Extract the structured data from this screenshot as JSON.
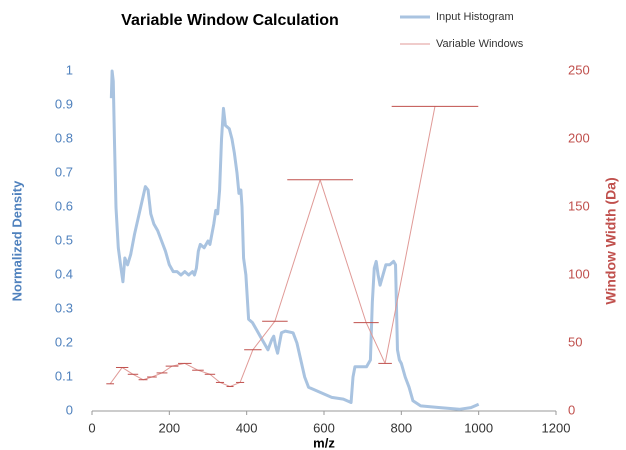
{
  "chart_data": {
    "type": "line",
    "title": "Variable Window Calculation",
    "xlabel": "m/z",
    "ylabel": "Normalized Density",
    "y2label": "Window Width (Da)",
    "xlim": [
      0,
      1200
    ],
    "xticks": [
      0,
      200,
      400,
      600,
      800,
      1000,
      1200
    ],
    "ylim": [
      0,
      1
    ],
    "yticks": [
      0,
      0.1,
      0.2,
      0.3,
      0.4,
      0.5,
      0.6,
      0.7,
      0.8,
      0.9,
      1
    ],
    "y2lim": [
      0,
      250
    ],
    "y2ticks": [
      0,
      50,
      100,
      150,
      200,
      250
    ],
    "legend": "top-right",
    "series": [
      {
        "name": "Input Histogram",
        "color": "#a9c3e0",
        "x": [
          50,
          52,
          55,
          58,
          62,
          68,
          75,
          80,
          85,
          92,
          100,
          110,
          120,
          130,
          138,
          145,
          152,
          160,
          170,
          180,
          190,
          200,
          210,
          220,
          230,
          240,
          250,
          260,
          265,
          270,
          275,
          280,
          290,
          300,
          305,
          315,
          320,
          325,
          330,
          335,
          340,
          345,
          355,
          362,
          368,
          375,
          380,
          385,
          388,
          392,
          398,
          405,
          415,
          425,
          435,
          445,
          455,
          465,
          470,
          475,
          480,
          490,
          500,
          520,
          530,
          540,
          550,
          560,
          580,
          600,
          620,
          650,
          670,
          675,
          680,
          700,
          710,
          720,
          725,
          730,
          735,
          740,
          745,
          750,
          760,
          770,
          780,
          785,
          790,
          795,
          800,
          810,
          820,
          830,
          850,
          900,
          950,
          980,
          1000
        ],
        "values": [
          0.92,
          1.0,
          0.97,
          0.8,
          0.6,
          0.48,
          0.42,
          0.38,
          0.45,
          0.43,
          0.46,
          0.52,
          0.57,
          0.62,
          0.66,
          0.65,
          0.58,
          0.55,
          0.53,
          0.5,
          0.47,
          0.43,
          0.41,
          0.41,
          0.4,
          0.41,
          0.4,
          0.41,
          0.4,
          0.42,
          0.47,
          0.49,
          0.48,
          0.5,
          0.49,
          0.55,
          0.59,
          0.58,
          0.65,
          0.8,
          0.89,
          0.84,
          0.83,
          0.8,
          0.76,
          0.7,
          0.64,
          0.65,
          0.6,
          0.45,
          0.4,
          0.27,
          0.26,
          0.24,
          0.22,
          0.2,
          0.18,
          0.21,
          0.22,
          0.19,
          0.17,
          0.23,
          0.235,
          0.23,
          0.2,
          0.15,
          0.1,
          0.07,
          0.06,
          0.05,
          0.04,
          0.035,
          0.025,
          0.1,
          0.13,
          0.13,
          0.13,
          0.15,
          0.32,
          0.42,
          0.44,
          0.4,
          0.37,
          0.39,
          0.43,
          0.43,
          0.44,
          0.43,
          0.18,
          0.15,
          0.14,
          0.1,
          0.07,
          0.03,
          0.015,
          0.01,
          0.005,
          0.01,
          0.02
        ]
      },
      {
        "name": "Variable Windows",
        "color": "#e09a97",
        "bar_color": "#c0504d",
        "axis": "y2",
        "x": [
          47,
          78,
          106,
          132,
          155,
          181,
          207,
          240,
          274,
          305,
          331,
          357,
          383,
          416,
          473,
          590,
          709,
          758,
          887
        ],
        "values": [
          20,
          32,
          27,
          23,
          25,
          28,
          33,
          35,
          30,
          27,
          21,
          18,
          21,
          45,
          66,
          170,
          65,
          35,
          224
        ]
      }
    ]
  }
}
